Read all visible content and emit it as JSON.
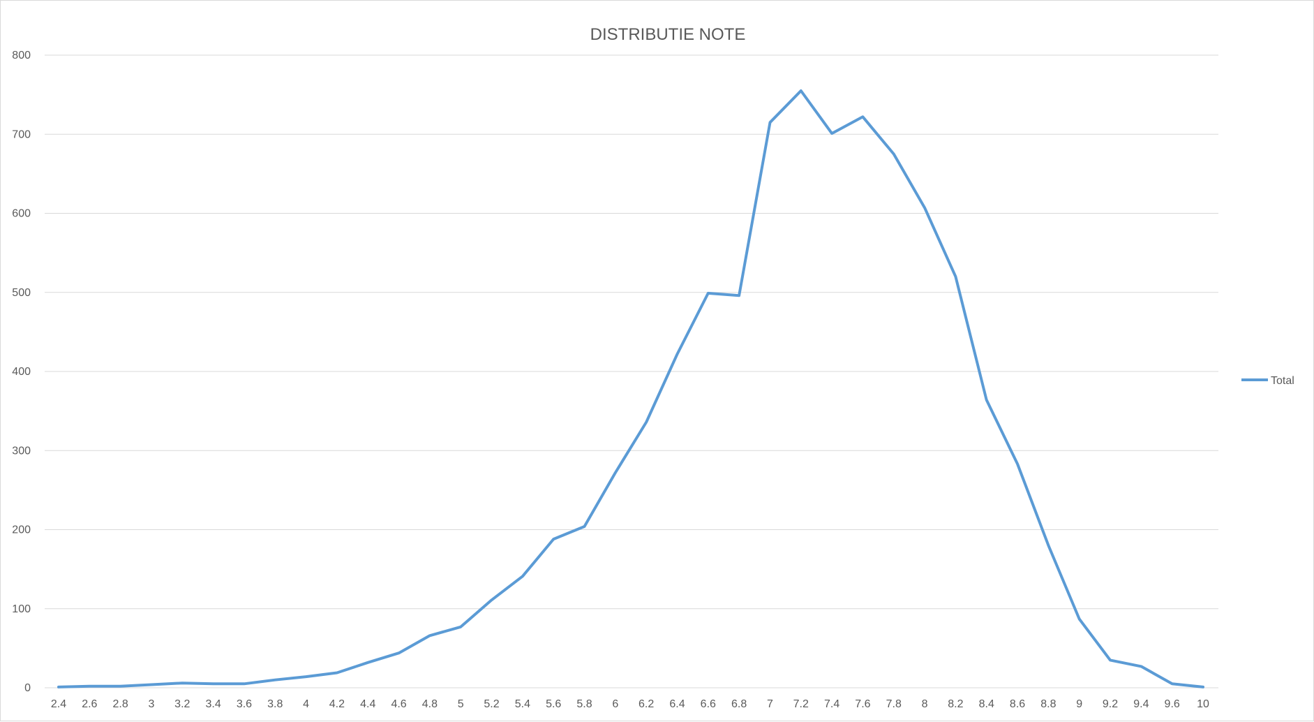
{
  "chart_data": {
    "type": "line",
    "title": "DISTRIBUTIE NOTE",
    "xlabel": "",
    "ylabel": "",
    "ylim": [
      0,
      800
    ],
    "yticks": [
      "0",
      "100",
      "200",
      "300",
      "400",
      "500",
      "600",
      "700",
      "800"
    ],
    "categories": [
      "2.4",
      "2.6",
      "2.8",
      "3",
      "3.2",
      "3.4",
      "3.6",
      "3.8",
      "4",
      "4.2",
      "4.4",
      "4.6",
      "4.8",
      "5",
      "5.2",
      "5.4",
      "5.6",
      "5.8",
      "6",
      "6.2",
      "6.4",
      "6.6",
      "6.8",
      "7",
      "7.2",
      "7.4",
      "7.6",
      "7.8",
      "8",
      "8.2",
      "8.4",
      "8.6",
      "8.8",
      "9",
      "9.2",
      "9.4",
      "9.6",
      "10"
    ],
    "series": [
      {
        "name": "Total",
        "color": "#5b9bd5",
        "values": [
          1,
          2,
          2,
          4,
          6,
          5,
          5,
          10,
          14,
          19,
          32,
          44,
          66,
          77,
          111,
          141,
          188,
          204,
          272,
          336,
          422,
          499,
          496,
          715,
          755,
          701,
          722,
          675,
          607,
          520,
          364,
          283,
          180,
          87,
          35,
          27,
          5,
          1
        ]
      }
    ],
    "grid": true,
    "legend_position": "right"
  }
}
